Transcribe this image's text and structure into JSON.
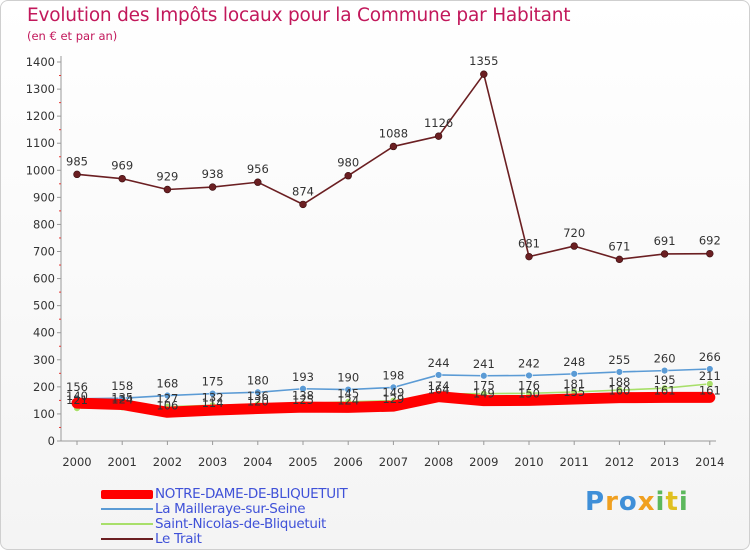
{
  "title": "Evolution des Impôts locaux pour la Commune par Habitant",
  "subtitle": "(en € et par an)",
  "brand": "Proxiti",
  "colors": {
    "title": "#c2185b",
    "legend_text": "#3f51d8",
    "notre_dame": "#ff0000",
    "la_mailleraye": "#5b9bd5",
    "saint_nicolas": "#a8df6a",
    "le_trait": "#6b1f22"
  },
  "chart_data": {
    "type": "line",
    "title": "Evolution des Impôts locaux pour la Commune par Habitant",
    "subtitle": "(en € et par an)",
    "xlabel": "",
    "ylabel": "",
    "ylim": [
      0,
      1400
    ],
    "yticks": [
      0,
      100,
      200,
      300,
      400,
      500,
      600,
      700,
      800,
      900,
      1000,
      1100,
      1200,
      1300,
      1400
    ],
    "categories": [
      "2000",
      "2001",
      "2002",
      "2003",
      "2004",
      "2005",
      "2006",
      "2007",
      "2008",
      "2009",
      "2010",
      "2011",
      "2012",
      "2013",
      "2014"
    ],
    "grid": false,
    "legend_position": "bottom-left",
    "series": [
      {
        "name": "NOTRE-DAME-DE-BLIQUETUIT",
        "color": "#ff0000",
        "values": [
          140,
          135,
          106,
          114,
          120,
          125,
          124,
          129,
          164,
          149,
          150,
          155,
          160,
          161,
          161
        ],
        "labels": [
          "140",
          "135",
          "106",
          "114",
          "120",
          "125",
          "124",
          "129",
          "164",
          "149",
          "150",
          "155",
          "160",
          "161",
          "161"
        ]
      },
      {
        "name": "La Mailleraye-sur-Seine",
        "color": "#5b9bd5",
        "values": [
          156,
          158,
          168,
          175,
          180,
          193,
          190,
          198,
          244,
          241,
          242,
          248,
          255,
          260,
          266
        ],
        "labels": [
          "156",
          "158",
          "168",
          "175",
          "180",
          "193",
          "190",
          "198",
          "244",
          "241",
          "242",
          "248",
          "255",
          "260",
          "266"
        ]
      },
      {
        "name": "Saint-Nicolas-de-Bliquetuit",
        "color": "#a8df6a",
        "values": [
          121,
          124,
          127,
          132,
          136,
          138,
          145,
          149,
          174,
          175,
          176,
          181,
          188,
          195,
          211
        ],
        "labels": [
          "121",
          "124",
          "127",
          "132",
          "136",
          "138",
          "145",
          "149",
          "174",
          "175",
          "176",
          "181",
          "188",
          "195",
          "211"
        ]
      },
      {
        "name": "Le Trait",
        "color": "#6b1f22",
        "values": [
          985,
          969,
          929,
          938,
          956,
          874,
          980,
          1088,
          1126,
          1355,
          681,
          720,
          671,
          691,
          692
        ],
        "labels": [
          "985",
          "969",
          "929",
          "938",
          "956",
          "874",
          "980",
          "1088",
          "1126",
          "1355",
          "681",
          "720",
          "671",
          "691",
          "692"
        ]
      }
    ]
  }
}
